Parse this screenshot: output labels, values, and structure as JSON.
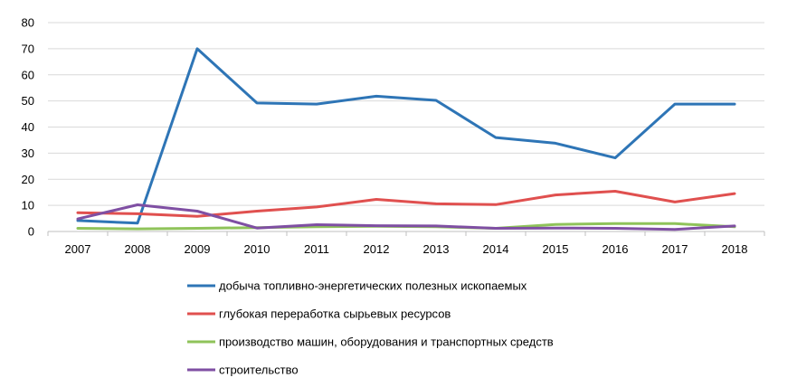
{
  "chart_data": {
    "type": "line",
    "categories": [
      "2007",
      "2008",
      "2009",
      "2010",
      "2011",
      "2012",
      "2013",
      "2014",
      "2015",
      "2016",
      "2017",
      "2018"
    ],
    "ylim": [
      0,
      80
    ],
    "yticks": [
      0,
      10,
      20,
      30,
      40,
      50,
      60,
      70,
      80
    ],
    "grid": true,
    "legend_position": "bottom",
    "series": [
      {
        "name": "добыча топливно-энергетических  полезных ископаемых",
        "color": "#2e75b6",
        "values": [
          4.2,
          3.2,
          70,
          49.2,
          48.8,
          51.8,
          50.2,
          36,
          33.8,
          28.2,
          48.8,
          48.8
        ]
      },
      {
        "name": "глубокая переработка сырьевых ресурсов",
        "color": "#e0504f",
        "values": [
          7.2,
          6.8,
          5.8,
          7.8,
          9.4,
          12.3,
          10.6,
          10.3,
          14,
          15.4,
          11.3,
          14.5
        ]
      },
      {
        "name": "производство машин, оборудования и транспортных средств",
        "color": "#8fc35a",
        "values": [
          1.2,
          1.0,
          1.2,
          1.5,
          1.8,
          2.0,
          1.8,
          1.2,
          2.7,
          3.0,
          3.0,
          1.8
        ]
      },
      {
        "name": "строительство",
        "color": "#7f4fa3",
        "values": [
          4.8,
          10.2,
          7.8,
          1.3,
          2.6,
          2.2,
          2.1,
          1.2,
          1.3,
          1.2,
          0.8,
          2.1
        ]
      }
    ]
  }
}
